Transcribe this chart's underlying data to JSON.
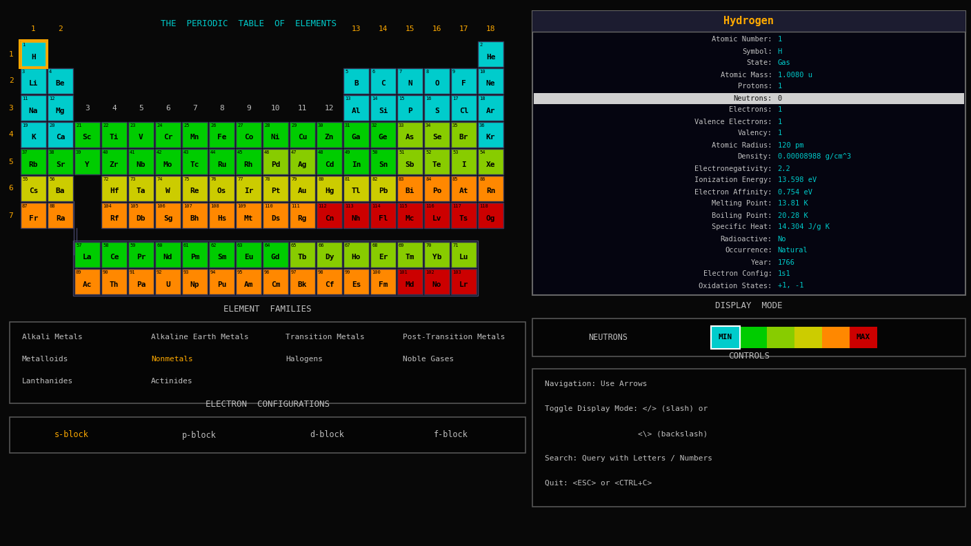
{
  "bg_color": "#080808",
  "title": "THE  PERIODIC  TABLE  OF  ELEMENTS",
  "title_color": "#00cccc",
  "panel_bg": "#0a0a14",
  "panel_border": "#666666",
  "cell_border": "#333355",
  "text_white": "#c0c0c0",
  "text_cyan": "#00cccc",
  "text_orange": "#ffaa00",
  "text_black": "#000000",
  "selected_border": "#ffaa00",
  "info_panel_title": "Hydrogen",
  "info_lines": [
    [
      "Atomic Number:",
      "1"
    ],
    [
      "Symbol:",
      "H"
    ],
    [
      "State:",
      "Gas"
    ],
    [
      "Atomic Mass:",
      "1.0080 u"
    ],
    [
      "Protons:",
      "1"
    ],
    [
      "Neutrons:",
      "0"
    ],
    [
      "Electrons:",
      "1"
    ],
    [
      "Valence Electrons:",
      "1"
    ],
    [
      "Valency:",
      "1"
    ],
    [
      "Atomic Radius:",
      "120 pm"
    ],
    [
      "Density:",
      "0.00008988 g/cm^3"
    ],
    [
      "Electronegativity:",
      "2.2"
    ],
    [
      "Ionization Energy:",
      "13.598 eV"
    ],
    [
      "Electron Affinity:",
      "0.754 eV"
    ],
    [
      "Melting Point:",
      "13.81 K"
    ],
    [
      "Boiling Point:",
      "20.28 K"
    ],
    [
      "Specific Heat:",
      "14.304 J/g K"
    ],
    [
      "Radioactive:",
      "No"
    ],
    [
      "Occurrence:",
      "Natural"
    ],
    [
      "Year:",
      "1766"
    ],
    [
      "Electron Config:",
      "1s1"
    ],
    [
      "Oxidation States:",
      "+1, -1"
    ]
  ],
  "element_families": [
    [
      "Alkali Metals",
      "Alkaline Earth Metals",
      "Transition Metals",
      "Post-Transition Metals"
    ],
    [
      "Metalloids",
      "Nonmetals",
      "Halogens",
      "Noble Gases"
    ],
    [
      "Lanthanides",
      "Actinides",
      "",
      ""
    ]
  ],
  "electron_config_blocks": [
    "s-block",
    "p-block",
    "d-block",
    "f-block"
  ],
  "controls_lines": [
    "Navigation: Use Arrows",
    "Toggle Display Mode: </> (slash) or",
    "                    <\\> (backslash)",
    "Search: Query with Letters / Numbers",
    "Quit: <ESC> or <CTRL+C>"
  ],
  "elements": [
    {
      "num": 1,
      "sym": "H",
      "row": 1,
      "col": 1,
      "color": "#00cccc"
    },
    {
      "num": 2,
      "sym": "He",
      "row": 1,
      "col": 18,
      "color": "#00cccc"
    },
    {
      "num": 3,
      "sym": "Li",
      "row": 2,
      "col": 1,
      "color": "#00cccc"
    },
    {
      "num": 4,
      "sym": "Be",
      "row": 2,
      "col": 2,
      "color": "#00cccc"
    },
    {
      "num": 5,
      "sym": "B",
      "row": 2,
      "col": 13,
      "color": "#00cccc"
    },
    {
      "num": 6,
      "sym": "C",
      "row": 2,
      "col": 14,
      "color": "#00cccc"
    },
    {
      "num": 7,
      "sym": "N",
      "row": 2,
      "col": 15,
      "color": "#00cccc"
    },
    {
      "num": 8,
      "sym": "O",
      "row": 2,
      "col": 16,
      "color": "#00cccc"
    },
    {
      "num": 9,
      "sym": "F",
      "row": 2,
      "col": 17,
      "color": "#00cccc"
    },
    {
      "num": 10,
      "sym": "Ne",
      "row": 2,
      "col": 18,
      "color": "#00cccc"
    },
    {
      "num": 11,
      "sym": "Na",
      "row": 3,
      "col": 1,
      "color": "#00cccc"
    },
    {
      "num": 12,
      "sym": "Mg",
      "row": 3,
      "col": 2,
      "color": "#00cccc"
    },
    {
      "num": 13,
      "sym": "Al",
      "row": 3,
      "col": 13,
      "color": "#00cccc"
    },
    {
      "num": 14,
      "sym": "Si",
      "row": 3,
      "col": 14,
      "color": "#00cccc"
    },
    {
      "num": 15,
      "sym": "P",
      "row": 3,
      "col": 15,
      "color": "#00cccc"
    },
    {
      "num": 16,
      "sym": "S",
      "row": 3,
      "col": 16,
      "color": "#00cccc"
    },
    {
      "num": 17,
      "sym": "Cl",
      "row": 3,
      "col": 17,
      "color": "#00cccc"
    },
    {
      "num": 18,
      "sym": "Ar",
      "row": 3,
      "col": 18,
      "color": "#00cccc"
    },
    {
      "num": 19,
      "sym": "K",
      "row": 4,
      "col": 1,
      "color": "#00cccc"
    },
    {
      "num": 20,
      "sym": "Ca",
      "row": 4,
      "col": 2,
      "color": "#00cccc"
    },
    {
      "num": 21,
      "sym": "Sc",
      "row": 4,
      "col": 3,
      "color": "#00cc00"
    },
    {
      "num": 22,
      "sym": "Ti",
      "row": 4,
      "col": 4,
      "color": "#00cc00"
    },
    {
      "num": 23,
      "sym": "V",
      "row": 4,
      "col": 5,
      "color": "#00cc00"
    },
    {
      "num": 24,
      "sym": "Cr",
      "row": 4,
      "col": 6,
      "color": "#00cc00"
    },
    {
      "num": 25,
      "sym": "Mn",
      "row": 4,
      "col": 7,
      "color": "#00cc00"
    },
    {
      "num": 26,
      "sym": "Fe",
      "row": 4,
      "col": 8,
      "color": "#00cc00"
    },
    {
      "num": 27,
      "sym": "Co",
      "row": 4,
      "col": 9,
      "color": "#00cc00"
    },
    {
      "num": 28,
      "sym": "Ni",
      "row": 4,
      "col": 10,
      "color": "#00cc00"
    },
    {
      "num": 29,
      "sym": "Cu",
      "row": 4,
      "col": 11,
      "color": "#00cc00"
    },
    {
      "num": 30,
      "sym": "Zn",
      "row": 4,
      "col": 12,
      "color": "#00cc00"
    },
    {
      "num": 31,
      "sym": "Ga",
      "row": 4,
      "col": 13,
      "color": "#00cc00"
    },
    {
      "num": 32,
      "sym": "Ge",
      "row": 4,
      "col": 14,
      "color": "#00cc00"
    },
    {
      "num": 33,
      "sym": "As",
      "row": 4,
      "col": 15,
      "color": "#88cc00"
    },
    {
      "num": 34,
      "sym": "Se",
      "row": 4,
      "col": 16,
      "color": "#88cc00"
    },
    {
      "num": 35,
      "sym": "Br",
      "row": 4,
      "col": 17,
      "color": "#88cc00"
    },
    {
      "num": 36,
      "sym": "Kr",
      "row": 4,
      "col": 18,
      "color": "#00cccc"
    },
    {
      "num": 37,
      "sym": "Rb",
      "row": 5,
      "col": 1,
      "color": "#00cc00"
    },
    {
      "num": 38,
      "sym": "Sr",
      "row": 5,
      "col": 2,
      "color": "#00cc00"
    },
    {
      "num": 39,
      "sym": "Y",
      "row": 5,
      "col": 3,
      "color": "#00cc00"
    },
    {
      "num": 40,
      "sym": "Zr",
      "row": 5,
      "col": 4,
      "color": "#00cc00"
    },
    {
      "num": 41,
      "sym": "Nb",
      "row": 5,
      "col": 5,
      "color": "#00cc00"
    },
    {
      "num": 42,
      "sym": "Mo",
      "row": 5,
      "col": 6,
      "color": "#00cc00"
    },
    {
      "num": 43,
      "sym": "Tc",
      "row": 5,
      "col": 7,
      "color": "#00cc00"
    },
    {
      "num": 44,
      "sym": "Ru",
      "row": 5,
      "col": 8,
      "color": "#00cc00"
    },
    {
      "num": 45,
      "sym": "Rh",
      "row": 5,
      "col": 9,
      "color": "#00cc00"
    },
    {
      "num": 46,
      "sym": "Pd",
      "row": 5,
      "col": 10,
      "color": "#88cc00"
    },
    {
      "num": 47,
      "sym": "Ag",
      "row": 5,
      "col": 11,
      "color": "#88cc00"
    },
    {
      "num": 48,
      "sym": "Cd",
      "row": 5,
      "col": 12,
      "color": "#00cc00"
    },
    {
      "num": 49,
      "sym": "In",
      "row": 5,
      "col": 13,
      "color": "#00cc00"
    },
    {
      "num": 50,
      "sym": "Sn",
      "row": 5,
      "col": 14,
      "color": "#00cc00"
    },
    {
      "num": 51,
      "sym": "Sb",
      "row": 5,
      "col": 15,
      "color": "#88cc00"
    },
    {
      "num": 52,
      "sym": "Te",
      "row": 5,
      "col": 16,
      "color": "#88cc00"
    },
    {
      "num": 53,
      "sym": "I",
      "row": 5,
      "col": 17,
      "color": "#88cc00"
    },
    {
      "num": 54,
      "sym": "Xe",
      "row": 5,
      "col": 18,
      "color": "#88cc00"
    },
    {
      "num": 55,
      "sym": "Cs",
      "row": 6,
      "col": 1,
      "color": "#cccc00"
    },
    {
      "num": 56,
      "sym": "Ba",
      "row": 6,
      "col": 2,
      "color": "#cccc00"
    },
    {
      "num": 72,
      "sym": "Hf",
      "row": 6,
      "col": 4,
      "color": "#cccc00"
    },
    {
      "num": 73,
      "sym": "Ta",
      "row": 6,
      "col": 5,
      "color": "#cccc00"
    },
    {
      "num": 74,
      "sym": "W",
      "row": 6,
      "col": 6,
      "color": "#cccc00"
    },
    {
      "num": 75,
      "sym": "Re",
      "row": 6,
      "col": 7,
      "color": "#cccc00"
    },
    {
      "num": 76,
      "sym": "Os",
      "row": 6,
      "col": 8,
      "color": "#cccc00"
    },
    {
      "num": 77,
      "sym": "Ir",
      "row": 6,
      "col": 9,
      "color": "#cccc00"
    },
    {
      "num": 78,
      "sym": "Pt",
      "row": 6,
      "col": 10,
      "color": "#cccc00"
    },
    {
      "num": 79,
      "sym": "Au",
      "row": 6,
      "col": 11,
      "color": "#cccc00"
    },
    {
      "num": 80,
      "sym": "Hg",
      "row": 6,
      "col": 12,
      "color": "#cccc00"
    },
    {
      "num": 81,
      "sym": "Tl",
      "row": 6,
      "col": 13,
      "color": "#cccc00"
    },
    {
      "num": 82,
      "sym": "Pb",
      "row": 6,
      "col": 14,
      "color": "#cccc00"
    },
    {
      "num": 83,
      "sym": "Bi",
      "row": 6,
      "col": 15,
      "color": "#ff8800"
    },
    {
      "num": 84,
      "sym": "Po",
      "row": 6,
      "col": 16,
      "color": "#ff8800"
    },
    {
      "num": 85,
      "sym": "At",
      "row": 6,
      "col": 17,
      "color": "#ff8800"
    },
    {
      "num": 86,
      "sym": "Rn",
      "row": 6,
      "col": 18,
      "color": "#ff8800"
    },
    {
      "num": 87,
      "sym": "Fr",
      "row": 7,
      "col": 1,
      "color": "#ff8800"
    },
    {
      "num": 88,
      "sym": "Ra",
      "row": 7,
      "col": 2,
      "color": "#ff8800"
    },
    {
      "num": 104,
      "sym": "Rf",
      "row": 7,
      "col": 4,
      "color": "#ff8800"
    },
    {
      "num": 105,
      "sym": "Db",
      "row": 7,
      "col": 5,
      "color": "#ff8800"
    },
    {
      "num": 106,
      "sym": "Sg",
      "row": 7,
      "col": 6,
      "color": "#ff8800"
    },
    {
      "num": 107,
      "sym": "Bh",
      "row": 7,
      "col": 7,
      "color": "#ff8800"
    },
    {
      "num": 108,
      "sym": "Hs",
      "row": 7,
      "col": 8,
      "color": "#ff8800"
    },
    {
      "num": 109,
      "sym": "Mt",
      "row": 7,
      "col": 9,
      "color": "#ff8800"
    },
    {
      "num": 110,
      "sym": "Ds",
      "row": 7,
      "col": 10,
      "color": "#ff8800"
    },
    {
      "num": 111,
      "sym": "Rg",
      "row": 7,
      "col": 11,
      "color": "#ff8800"
    },
    {
      "num": 112,
      "sym": "Cn",
      "row": 7,
      "col": 12,
      "color": "#cc0000"
    },
    {
      "num": 113,
      "sym": "Nh",
      "row": 7,
      "col": 13,
      "color": "#cc0000"
    },
    {
      "num": 114,
      "sym": "Fl",
      "row": 7,
      "col": 14,
      "color": "#cc0000"
    },
    {
      "num": 115,
      "sym": "Mc",
      "row": 7,
      "col": 15,
      "color": "#cc0000"
    },
    {
      "num": 116,
      "sym": "Lv",
      "row": 7,
      "col": 16,
      "color": "#cc0000"
    },
    {
      "num": 117,
      "sym": "Ts",
      "row": 7,
      "col": 17,
      "color": "#cc0000"
    },
    {
      "num": 118,
      "sym": "Og",
      "row": 7,
      "col": 18,
      "color": "#cc0000"
    },
    {
      "num": 57,
      "sym": "La",
      "row": 8,
      "col": 3,
      "color": "#00cc00"
    },
    {
      "num": 58,
      "sym": "Ce",
      "row": 8,
      "col": 4,
      "color": "#00cc00"
    },
    {
      "num": 59,
      "sym": "Pr",
      "row": 8,
      "col": 5,
      "color": "#00cc00"
    },
    {
      "num": 60,
      "sym": "Nd",
      "row": 8,
      "col": 6,
      "color": "#00cc00"
    },
    {
      "num": 61,
      "sym": "Pm",
      "row": 8,
      "col": 7,
      "color": "#00cc00"
    },
    {
      "num": 62,
      "sym": "Sm",
      "row": 8,
      "col": 8,
      "color": "#00cc00"
    },
    {
      "num": 63,
      "sym": "Eu",
      "row": 8,
      "col": 9,
      "color": "#00cc00"
    },
    {
      "num": 64,
      "sym": "Gd",
      "row": 8,
      "col": 10,
      "color": "#00cc00"
    },
    {
      "num": 65,
      "sym": "Tb",
      "row": 8,
      "col": 11,
      "color": "#88cc00"
    },
    {
      "num": 66,
      "sym": "Dy",
      "row": 8,
      "col": 12,
      "color": "#88cc00"
    },
    {
      "num": 67,
      "sym": "Ho",
      "row": 8,
      "col": 13,
      "color": "#88cc00"
    },
    {
      "num": 68,
      "sym": "Er",
      "row": 8,
      "col": 14,
      "color": "#88cc00"
    },
    {
      "num": 69,
      "sym": "Tm",
      "row": 8,
      "col": 15,
      "color": "#88cc00"
    },
    {
      "num": 70,
      "sym": "Yb",
      "row": 8,
      "col": 16,
      "color": "#88cc00"
    },
    {
      "num": 71,
      "sym": "Lu",
      "row": 8,
      "col": 17,
      "color": "#88cc00"
    },
    {
      "num": 89,
      "sym": "Ac",
      "row": 9,
      "col": 3,
      "color": "#ff8800"
    },
    {
      "num": 90,
      "sym": "Th",
      "row": 9,
      "col": 4,
      "color": "#ff8800"
    },
    {
      "num": 91,
      "sym": "Pa",
      "row": 9,
      "col": 5,
      "color": "#ff8800"
    },
    {
      "num": 92,
      "sym": "U",
      "row": 9,
      "col": 6,
      "color": "#ff8800"
    },
    {
      "num": 93,
      "sym": "Np",
      "row": 9,
      "col": 7,
      "color": "#ff8800"
    },
    {
      "num": 94,
      "sym": "Pu",
      "row": 9,
      "col": 8,
      "color": "#ff8800"
    },
    {
      "num": 95,
      "sym": "Am",
      "row": 9,
      "col": 9,
      "color": "#ff8800"
    },
    {
      "num": 96,
      "sym": "Cm",
      "row": 9,
      "col": 10,
      "color": "#ff8800"
    },
    {
      "num": 97,
      "sym": "Bk",
      "row": 9,
      "col": 11,
      "color": "#ff8800"
    },
    {
      "num": 98,
      "sym": "Cf",
      "row": 9,
      "col": 12,
      "color": "#ff8800"
    },
    {
      "num": 99,
      "sym": "Es",
      "row": 9,
      "col": 13,
      "color": "#ff8800"
    },
    {
      "num": 100,
      "sym": "Fm",
      "row": 9,
      "col": 14,
      "color": "#ff8800"
    },
    {
      "num": 101,
      "sym": "Md",
      "row": 9,
      "col": 15,
      "color": "#cc0000"
    },
    {
      "num": 102,
      "sym": "No",
      "row": 9,
      "col": 16,
      "color": "#cc0000"
    },
    {
      "num": 103,
      "sym": "Lr",
      "row": 9,
      "col": 17,
      "color": "#cc0000"
    }
  ]
}
